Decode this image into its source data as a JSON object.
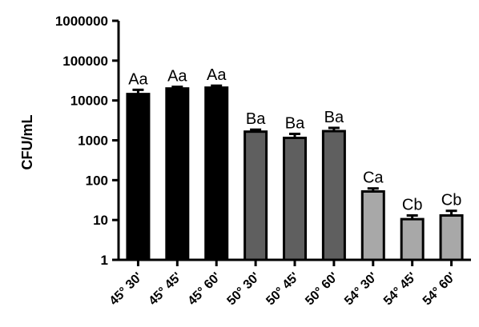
{
  "chart_data": {
    "type": "bar",
    "title": "",
    "xlabel": "",
    "ylabel": "CFU/mL",
    "yscale": "log",
    "ylim": [
      1,
      1000000
    ],
    "yticks": [
      1,
      10,
      100,
      1000,
      10000,
      100000,
      1000000
    ],
    "ytick_labels": [
      "1",
      "10",
      "100",
      "1000",
      "10000",
      "100000",
      "1000000"
    ],
    "categories": [
      "45° 30'",
      "45° 45'",
      "45° 60'",
      "50° 30'",
      "50° 45'",
      "50° 60'",
      "54° 30'",
      "54° 45'",
      "54° 60'"
    ],
    "values": [
      14500,
      20000,
      21000,
      1650,
      1150,
      1700,
      52,
      10.5,
      13
    ],
    "errors": [
      4000,
      2000,
      2500,
      200,
      300,
      350,
      10,
      2.5,
      4
    ],
    "labels": [
      "Aa",
      "Aa",
      "Aa",
      "Ba",
      "Ba",
      "Ba",
      "Ca",
      "Cb",
      "Cb"
    ],
    "colors": [
      "#000000",
      "#000000",
      "#000000",
      "#5f5f5f",
      "#5f5f5f",
      "#5f5f5f",
      "#a8a8a8",
      "#a8a8a8",
      "#a8a8a8"
    ],
    "grid": false,
    "legend": "none"
  }
}
